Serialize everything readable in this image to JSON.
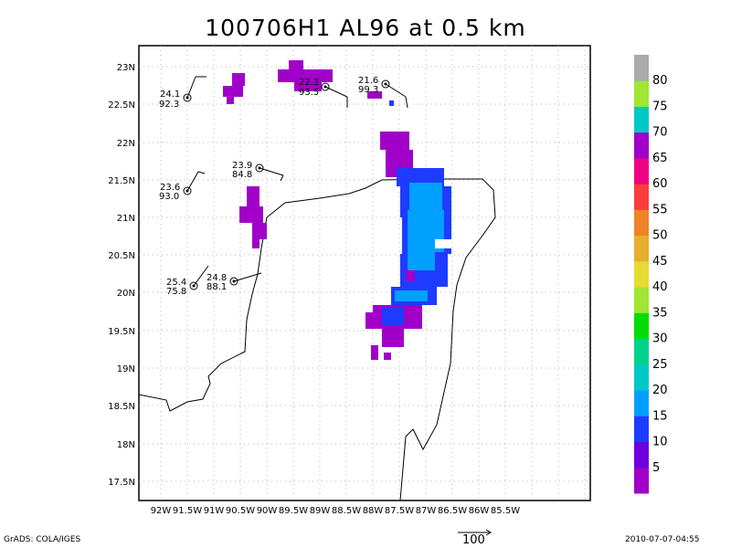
{
  "title": "100706H1 AL96 at 0.5 km",
  "footer": {
    "left": "GrADS: COLA/IGES",
    "right": "2010-07-07-04:55",
    "arrow_label": "100"
  },
  "axes": {
    "x_ticks": [
      "92W",
      "91.5W",
      "91W",
      "90.5W",
      "90W",
      "89.5W",
      "89W",
      "88.5W",
      "88W",
      "87.5W",
      "87W",
      "86.5W",
      "86W",
      "85.5W"
    ],
    "y_ticks": [
      "23N",
      "22.5N",
      "22N",
      "21.5N",
      "21N",
      "20.5N",
      "20N",
      "19.5N",
      "19N",
      "18.5N",
      "18N",
      "17.5N"
    ],
    "grid": true
  },
  "colorbar": {
    "labels": [
      "5",
      "10",
      "15",
      "20",
      "25",
      "30",
      "35",
      "40",
      "45",
      "50",
      "55",
      "60",
      "65",
      "70",
      "75",
      "80"
    ],
    "colors": [
      "#a000c8",
      "#6e00dc",
      "#1e3cff",
      "#00a0ff",
      "#00c8c8",
      "#00d28c",
      "#00dc00",
      "#a0e632",
      "#e6dc32",
      "#e6af2d",
      "#f08228",
      "#fa3c3c",
      "#f00082",
      "#a000c8",
      "#00c8c8",
      "#a0e632",
      "#aaaaaa"
    ]
  },
  "stations": [
    {
      "id": "st1",
      "v1": "24.1",
      "v2": "92.3"
    },
    {
      "id": "st2",
      "v1": "22.3",
      "v2": "93.5"
    },
    {
      "id": "st3",
      "v1": "21.6",
      "v2": "99.3"
    },
    {
      "id": "st4",
      "v1": "23.9",
      "v2": "84.8"
    },
    {
      "id": "st5",
      "v1": "23.6",
      "v2": "93.0"
    },
    {
      "id": "st6",
      "v1": "25.4",
      "v2": "75.8"
    },
    {
      "id": "st7",
      "v1": "24.8",
      "v2": "88.1"
    }
  ]
}
